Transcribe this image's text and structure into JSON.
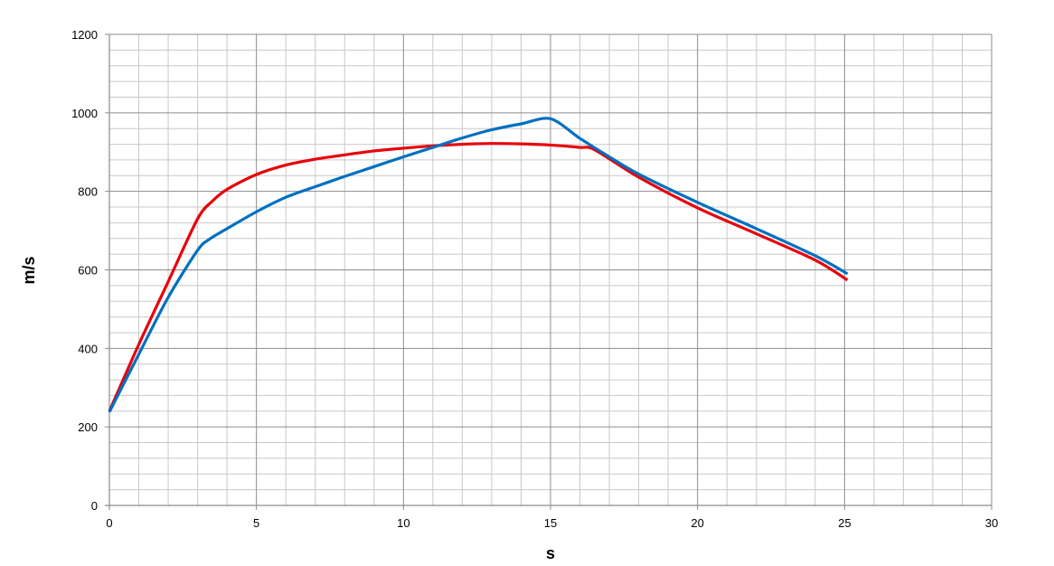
{
  "chart_data": {
    "type": "line",
    "title": "",
    "xlabel": "s",
    "ylabel": "m/s",
    "xlim": [
      0,
      30
    ],
    "ylim": [
      0,
      1200
    ],
    "x_major_ticks": [
      0,
      5,
      10,
      15,
      20,
      25,
      30
    ],
    "y_major_ticks": [
      0,
      200,
      400,
      600,
      800,
      1000,
      1200
    ],
    "x_minor_step": 1,
    "y_minor_step": 40,
    "grid": true,
    "legend": "none",
    "colors": {
      "major_grid": "#8c8c8c",
      "minor_grid": "#c8c8c8",
      "axis": "#8c8c8c"
    },
    "series": [
      {
        "color": "#e8000b",
        "points": [
          [
            0,
            240
          ],
          [
            1,
            410
          ],
          [
            2,
            570
          ],
          [
            3,
            730
          ],
          [
            3.5,
            775
          ],
          [
            4,
            805
          ],
          [
            5,
            843
          ],
          [
            6,
            867
          ],
          [
            7,
            882
          ],
          [
            8,
            893
          ],
          [
            9,
            903
          ],
          [
            10,
            910
          ],
          [
            11,
            916
          ],
          [
            12,
            920
          ],
          [
            13,
            922
          ],
          [
            14,
            921
          ],
          [
            15,
            918
          ],
          [
            16,
            912
          ],
          [
            16.5,
            906
          ],
          [
            18,
            836
          ],
          [
            20,
            758
          ],
          [
            22,
            692
          ],
          [
            24,
            625
          ],
          [
            25.1,
            574
          ]
        ]
      },
      {
        "color": "#0070c0",
        "points": [
          [
            0,
            238
          ],
          [
            1,
            385
          ],
          [
            2,
            530
          ],
          [
            3,
            650
          ],
          [
            3.4,
            678
          ],
          [
            4,
            705
          ],
          [
            5,
            748
          ],
          [
            6,
            785
          ],
          [
            7,
            812
          ],
          [
            8,
            838
          ],
          [
            9,
            863
          ],
          [
            10,
            888
          ],
          [
            11,
            912
          ],
          [
            12,
            936
          ],
          [
            13,
            957
          ],
          [
            14,
            972
          ],
          [
            15,
            985
          ],
          [
            16,
            935
          ],
          [
            17,
            888
          ],
          [
            18,
            844
          ],
          [
            20,
            772
          ],
          [
            22,
            705
          ],
          [
            24,
            636
          ],
          [
            25.1,
            590
          ]
        ]
      }
    ]
  }
}
